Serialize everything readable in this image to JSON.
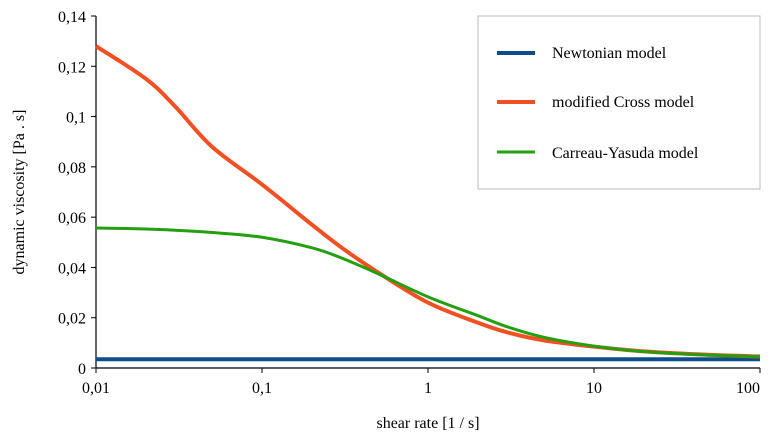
{
  "chart_data": {
    "type": "line",
    "title": "",
    "xlabel": "shear rate [1 / s]",
    "ylabel": "dynamic viscosity [Pa . s]",
    "xscale": "log",
    "xlim": [
      0.01,
      100
    ],
    "ylim": [
      0,
      0.14
    ],
    "xticks": [
      "0,01",
      "0,1",
      "1",
      "10",
      "100"
    ],
    "yticks": [
      "0",
      "0,02",
      "0,04",
      "0,06",
      "0,08",
      "0,1",
      "0,12",
      "0,14"
    ],
    "grid": false,
    "legend_position": "top-right",
    "series": [
      {
        "name": "Newtonian model",
        "color": "#0f4c8a",
        "x": [
          0.01,
          100
        ],
        "y": [
          0.0035,
          0.0035
        ]
      },
      {
        "name": "modified Cross model",
        "color": "#f25022",
        "x": [
          0.01,
          0.02,
          0.03,
          0.05,
          0.1,
          0.2,
          0.3,
          0.5,
          1,
          2,
          3,
          5,
          10,
          20,
          50,
          100
        ],
        "y": [
          0.128,
          0.115,
          0.104,
          0.088,
          0.073,
          0.057,
          0.048,
          0.038,
          0.026,
          0.018,
          0.0142,
          0.011,
          0.0085,
          0.0066,
          0.0052,
          0.0046
        ]
      },
      {
        "name": "Carreau-Yasuda model",
        "color": "#22a010",
        "x": [
          0.01,
          0.02,
          0.03,
          0.05,
          0.1,
          0.2,
          0.3,
          0.5,
          1,
          2,
          3,
          5,
          10,
          20,
          50,
          100
        ],
        "y": [
          0.0557,
          0.0553,
          0.0548,
          0.0539,
          0.052,
          0.0478,
          0.0438,
          0.0375,
          0.0283,
          0.0208,
          0.0164,
          0.0122,
          0.0087,
          0.0065,
          0.0051,
          0.0045
        ]
      }
    ]
  }
}
